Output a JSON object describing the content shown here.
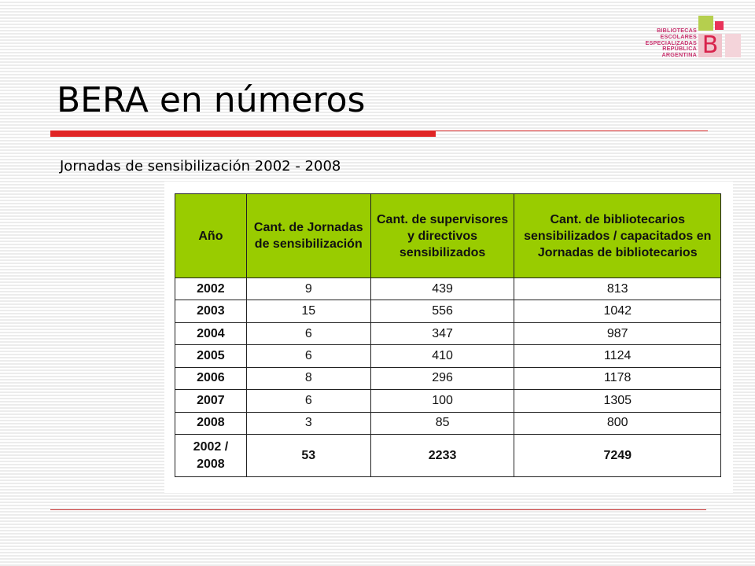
{
  "logo": {
    "lines": [
      "BIBLIOTECAS",
      "ESCOLARES",
      "ESPECIALIZADAS",
      "REPÚBLICA",
      "ARGENTINA"
    ],
    "mark": "B",
    "colors": {
      "green": "#b5cf4e",
      "pink": "#e8335a",
      "text": "#c8326e"
    }
  },
  "slide": {
    "title": "BERA en números",
    "subtitle": "Jornadas de sensibilización 2002 - 2008",
    "accent_color": "#e02424"
  },
  "table": {
    "header_color": "#99cc00",
    "columns": [
      "Año",
      "Cant. de Jornadas de sensibilización",
      "Cant. de supervisores y directivos sensibilizados",
      "Cant. de bibliotecarios sensibilizados / capacitados en Jornadas de bibliotecarios"
    ],
    "rows": [
      [
        "2002",
        "9",
        "439",
        "813"
      ],
      [
        "2003",
        "15",
        "556",
        "1042"
      ],
      [
        "2004",
        "6",
        "347",
        "987"
      ],
      [
        "2005",
        "6",
        "410",
        "1124"
      ],
      [
        "2006",
        "8",
        "296",
        "1178"
      ],
      [
        "2007",
        "6",
        "100",
        "1305"
      ],
      [
        "2008",
        "3",
        "85",
        "800"
      ]
    ],
    "total": [
      "2002 / 2008",
      "53",
      "2233",
      "7249"
    ]
  }
}
